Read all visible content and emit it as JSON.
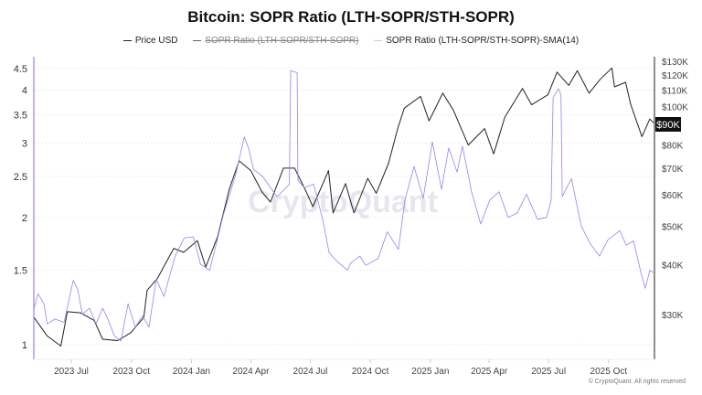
{
  "chart_data": {
    "type": "line",
    "title": "Bitcoin: SOPR Ratio (LTH-SOPR/STH-SOPR)",
    "legend_position": "top",
    "grid": true,
    "x_range": [
      "2023-05-05",
      "2025-12-10"
    ],
    "x_ticks": [
      "2023 Jul",
      "2023 Oct",
      "2024 Jan",
      "2024 Apr",
      "2024 Jul",
      "2024 Oct",
      "2025 Jan",
      "2025 Apr",
      "2025 Jul",
      "2025 Oct"
    ],
    "left_axis": {
      "scale": "log",
      "ylim": [
        0.95,
        4.8
      ],
      "ticks": [
        "1",
        "1.5",
        "2",
        "2.5",
        "3",
        "3.5",
        "4",
        "4.5"
      ],
      "tick_values": [
        1,
        1.5,
        2,
        2.5,
        3,
        3.5,
        4,
        4.5
      ]
    },
    "right_axis": {
      "scale": "log",
      "ylim": [
        25000,
        135000
      ],
      "ticks": [
        "$30K",
        "$40K",
        "$50K",
        "$60K",
        "$70K",
        "$80K",
        "$90K",
        "$100K",
        "$110K",
        "$120K",
        "$130K"
      ],
      "tick_values": [
        30000,
        40000,
        50000,
        60000,
        70000,
        80000,
        90000,
        100000,
        110000,
        120000,
        130000
      ],
      "current_label": "$90K"
    },
    "series": [
      {
        "name": "Price USD",
        "axis": "right",
        "color": "#222222",
        "visible": true,
        "points": [
          [
            "2023-05-05",
            29500
          ],
          [
            "2023-05-25",
            26500
          ],
          [
            "2023-06-15",
            25000
          ],
          [
            "2023-06-25",
            30500
          ],
          [
            "2023-07-15",
            30300
          ],
          [
            "2023-08-05",
            29000
          ],
          [
            "2023-08-18",
            26000
          ],
          [
            "2023-09-10",
            25800
          ],
          [
            "2023-09-30",
            27000
          ],
          [
            "2023-10-20",
            29500
          ],
          [
            "2023-10-25",
            34500
          ],
          [
            "2023-11-10",
            37000
          ],
          [
            "2023-12-05",
            44000
          ],
          [
            "2023-12-20",
            43000
          ],
          [
            "2024-01-10",
            46000
          ],
          [
            "2024-01-23",
            39500
          ],
          [
            "2024-02-10",
            47000
          ],
          [
            "2024-02-28",
            62000
          ],
          [
            "2024-03-14",
            73000
          ],
          [
            "2024-04-01",
            69000
          ],
          [
            "2024-04-18",
            61000
          ],
          [
            "2024-05-01",
            57500
          ],
          [
            "2024-05-21",
            70000
          ],
          [
            "2024-06-07",
            70000
          ],
          [
            "2024-06-25",
            61000
          ],
          [
            "2024-07-05",
            56000
          ],
          [
            "2024-07-29",
            69000
          ],
          [
            "2024-08-05",
            54000
          ],
          [
            "2024-08-24",
            64000
          ],
          [
            "2024-09-06",
            54000
          ],
          [
            "2024-09-27",
            66000
          ],
          [
            "2024-10-10",
            60500
          ],
          [
            "2024-10-29",
            72000
          ],
          [
            "2024-11-12",
            88000
          ],
          [
            "2024-11-22",
            99000
          ],
          [
            "2024-12-17",
            106000
          ],
          [
            "2024-12-30",
            92000
          ],
          [
            "2025-01-20",
            108000
          ],
          [
            "2025-02-05",
            98000
          ],
          [
            "2025-02-28",
            80000
          ],
          [
            "2025-03-25",
            88000
          ],
          [
            "2025-04-08",
            76000
          ],
          [
            "2025-04-25",
            94000
          ],
          [
            "2025-05-22",
            111000
          ],
          [
            "2025-06-05",
            101000
          ],
          [
            "2025-06-30",
            107000
          ],
          [
            "2025-07-14",
            122000
          ],
          [
            "2025-08-01",
            113000
          ],
          [
            "2025-08-14",
            123000
          ],
          [
            "2025-09-01",
            108000
          ],
          [
            "2025-09-18",
            117000
          ],
          [
            "2025-10-06",
            125000
          ],
          [
            "2025-10-10",
            112000
          ],
          [
            "2025-10-27",
            115000
          ],
          [
            "2025-11-04",
            101000
          ],
          [
            "2025-11-21",
            84000
          ],
          [
            "2025-12-03",
            93000
          ],
          [
            "2025-12-09",
            91000
          ]
        ]
      },
      {
        "name": "SOPR Ratio (LTH-SOPR/STH-SOPR)",
        "axis": "left",
        "color": "#888888",
        "visible": false,
        "points": []
      },
      {
        "name": "SOPR Ratio (LTH-SOPR/STH-SOPR)-SMA(14)",
        "axis": "left",
        "color": "#8f86f2",
        "visible": true,
        "points": [
          [
            "2023-05-05",
            1.22
          ],
          [
            "2023-05-11",
            1.32
          ],
          [
            "2023-05-20",
            1.25
          ],
          [
            "2023-05-25",
            1.12
          ],
          [
            "2023-06-06",
            1.15
          ],
          [
            "2023-06-20",
            1.13
          ],
          [
            "2023-07-04",
            1.42
          ],
          [
            "2023-07-11",
            1.35
          ],
          [
            "2023-07-18",
            1.18
          ],
          [
            "2023-07-29",
            1.22
          ],
          [
            "2023-08-08",
            1.12
          ],
          [
            "2023-08-18",
            1.22
          ],
          [
            "2023-08-26",
            1.15
          ],
          [
            "2023-09-05",
            1.05
          ],
          [
            "2023-09-15",
            1.02
          ],
          [
            "2023-09-26",
            1.25
          ],
          [
            "2023-10-07",
            1.1
          ],
          [
            "2023-10-18",
            1.17
          ],
          [
            "2023-10-28",
            1.1
          ],
          [
            "2023-11-08",
            1.43
          ],
          [
            "2023-11-20",
            1.3
          ],
          [
            "2023-12-07",
            1.62
          ],
          [
            "2023-12-21",
            1.79
          ],
          [
            "2024-01-04",
            1.8
          ],
          [
            "2024-01-15",
            1.55
          ],
          [
            "2024-01-29",
            1.5
          ],
          [
            "2024-02-19",
            2.03
          ],
          [
            "2024-03-08",
            2.5
          ],
          [
            "2024-03-22",
            3.1
          ],
          [
            "2024-03-29",
            2.9
          ],
          [
            "2024-04-05",
            2.6
          ],
          [
            "2024-04-19",
            2.5
          ],
          [
            "2024-05-11",
            2.24
          ],
          [
            "2024-05-25",
            2.35
          ],
          [
            "2024-05-30",
            2.4
          ],
          [
            "2024-06-01",
            4.45
          ],
          [
            "2024-06-11",
            4.4
          ],
          [
            "2024-06-12",
            2.45
          ],
          [
            "2024-06-22",
            2.35
          ],
          [
            "2024-07-06",
            2.4
          ],
          [
            "2024-07-20",
            1.98
          ],
          [
            "2024-07-30",
            1.65
          ],
          [
            "2024-08-10",
            1.58
          ],
          [
            "2024-08-27",
            1.5
          ],
          [
            "2024-09-01",
            1.56
          ],
          [
            "2024-09-15",
            1.62
          ],
          [
            "2024-09-24",
            1.54
          ],
          [
            "2024-10-13",
            1.6
          ],
          [
            "2024-10-27",
            1.85
          ],
          [
            "2024-11-13",
            1.68
          ],
          [
            "2024-11-23",
            2.2
          ],
          [
            "2024-12-07",
            2.64
          ],
          [
            "2024-12-21",
            2.22
          ],
          [
            "2025-01-04",
            3.02
          ],
          [
            "2025-01-18",
            2.33
          ],
          [
            "2025-01-29",
            2.92
          ],
          [
            "2025-02-11",
            2.56
          ],
          [
            "2025-02-19",
            2.95
          ],
          [
            "2025-03-05",
            2.3
          ],
          [
            "2025-03-19",
            1.93
          ],
          [
            "2025-04-02",
            2.2
          ],
          [
            "2025-04-16",
            2.3
          ],
          [
            "2025-04-30",
            2.0
          ],
          [
            "2025-05-14",
            2.05
          ],
          [
            "2025-05-28",
            2.27
          ],
          [
            "2025-06-14",
            1.98
          ],
          [
            "2025-06-28",
            2.0
          ],
          [
            "2025-07-05",
            2.2
          ],
          [
            "2025-07-08",
            3.84
          ],
          [
            "2025-07-16",
            4.03
          ],
          [
            "2025-07-20",
            3.9
          ],
          [
            "2025-07-22",
            2.24
          ],
          [
            "2025-08-05",
            2.47
          ],
          [
            "2025-08-20",
            1.91
          ],
          [
            "2025-09-03",
            1.73
          ],
          [
            "2025-09-17",
            1.62
          ],
          [
            "2025-09-30",
            1.77
          ],
          [
            "2025-10-18",
            1.86
          ],
          [
            "2025-10-28",
            1.72
          ],
          [
            "2025-11-08",
            1.76
          ],
          [
            "2025-11-19",
            1.49
          ],
          [
            "2025-11-26",
            1.36
          ],
          [
            "2025-12-03",
            1.5
          ],
          [
            "2025-12-09",
            1.48
          ]
        ]
      }
    ],
    "watermark": "CryptoQuant",
    "footer": "© CryptoQuant. All rights reserved"
  }
}
